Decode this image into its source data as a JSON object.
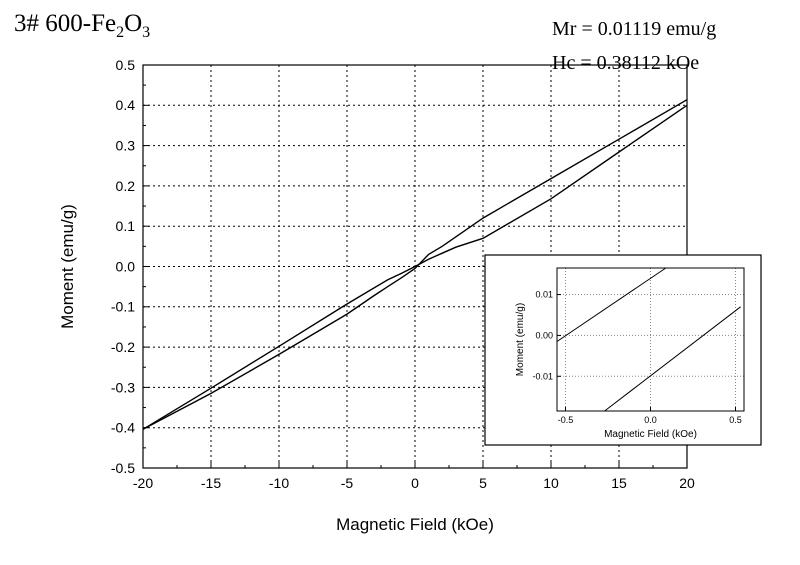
{
  "title_prefix": "3# 600-Fe",
  "title_sub1": "2",
  "title_mid": "O",
  "title_sub2": "3",
  "annotations": {
    "mr": "Mr = 0.01119 emu/g",
    "hc": "Hc = 0.38112 kOe"
  },
  "chart_data": [
    {
      "type": "line",
      "xlabel": "Magnetic Field (kOe)",
      "ylabel": "Moment (emu/g)",
      "xlim": [
        -20,
        20
      ],
      "ylim": [
        -0.5,
        0.5
      ],
      "xticks": [
        -20,
        -15,
        -10,
        -5,
        0,
        5,
        10,
        15,
        20
      ],
      "xtick_labels": [
        "-20",
        "-15",
        "-10",
        "-5",
        "0",
        "5",
        "10",
        "15",
        "20"
      ],
      "yticks": [
        -0.5,
        -0.4,
        -0.3,
        -0.2,
        -0.1,
        0.0,
        0.1,
        0.2,
        0.3,
        0.4,
        0.5
      ],
      "ytick_labels": [
        "-0.5",
        "-0.4",
        "-0.3",
        "-0.2",
        "-0.1",
        "0.0",
        "0.1",
        "0.2",
        "0.3",
        "0.4",
        "0.5"
      ],
      "grid": true,
      "series": [
        {
          "x": [
            -20,
            -15,
            -10,
            -5,
            -2,
            -1,
            0,
            1,
            2,
            3,
            5,
            10,
            15,
            20
          ],
          "y": [
            -0.404,
            -0.302,
            -0.198,
            -0.093,
            -0.033,
            -0.017,
            0.0,
            0.018,
            0.033,
            0.048,
            0.07,
            0.168,
            0.284,
            0.4
          ]
        },
        {
          "x": [
            -20,
            -15,
            -10,
            -5,
            -3,
            -2,
            -1,
            0,
            1,
            2,
            5,
            10,
            15,
            20
          ],
          "y": [
            -0.404,
            -0.315,
            -0.218,
            -0.118,
            -0.072,
            -0.05,
            -0.028,
            -0.005,
            0.03,
            0.05,
            0.12,
            0.218,
            0.316,
            0.414
          ]
        }
      ]
    },
    {
      "type": "line",
      "xlabel": "Magnetic Field (kOe)",
      "ylabel": "Moment (emu/g)",
      "xlim": [
        -0.55,
        0.55
      ],
      "ylim": [
        -0.0185,
        0.0165
      ],
      "xticks": [
        -0.5,
        0.0,
        0.5
      ],
      "xtick_labels": [
        "-0.5",
        "0.0",
        "0.5"
      ],
      "yticks": [
        -0.01,
        0.0,
        0.01
      ],
      "ytick_labels": [
        "-0.01",
        "0.00",
        "0.01"
      ],
      "grid": true,
      "series": [
        {
          "x": [
            -0.55,
            0.09
          ],
          "y": [
            -0.0015,
            0.0165
          ]
        },
        {
          "x": [
            -0.27,
            0.53
          ],
          "y": [
            -0.0185,
            0.007
          ]
        }
      ]
    }
  ]
}
